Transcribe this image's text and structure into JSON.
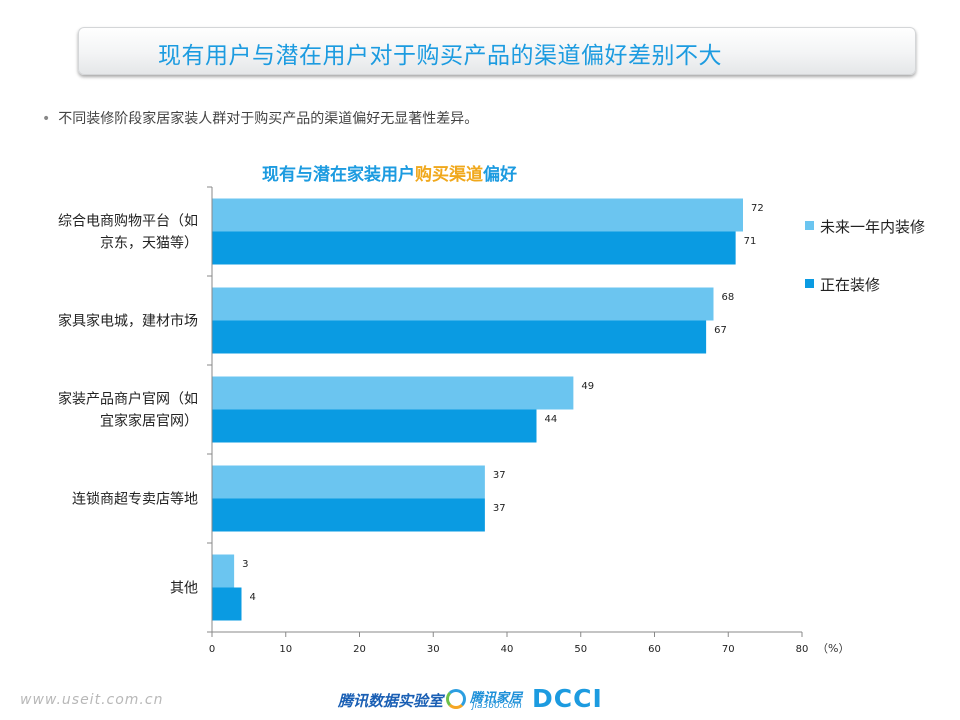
{
  "slide": {
    "title": "现有用户与潜在用户对于购买产品的渠道偏好差别不大",
    "bullet": "不同装修阶段家居家装人群对于购买产品的渠道偏好无显著性差异。"
  },
  "chart_title": {
    "part1": "现有与潜在家装用户",
    "part2": "购买渠道",
    "part3": "偏好"
  },
  "chart_data": {
    "type": "bar",
    "orientation": "horizontal",
    "categories": [
      [
        "综合电商购物平台（如",
        "京东，天猫等）"
      ],
      [
        "家具家电城，建材市场"
      ],
      [
        "家装产品商户官网（如",
        "宜家家居官网）"
      ],
      [
        "连锁商超专卖店等地"
      ],
      [
        "其他"
      ]
    ],
    "series": [
      {
        "name": "未来一年内装修",
        "color": "#6bc5f0",
        "values": [
          72,
          68,
          49,
          37,
          3
        ]
      },
      {
        "name": "正在装修",
        "color": "#0a9be2",
        "values": [
          71,
          67,
          44,
          37,
          4
        ]
      }
    ],
    "xlim": [
      0,
      80
    ],
    "xticks": [
      0,
      10,
      20,
      30,
      40,
      50,
      60,
      70,
      80
    ],
    "unit_label": "（%）",
    "legend_position": "right",
    "grid": false
  },
  "footer": {
    "url": "www.useit.com.cn",
    "lab": "腾讯数据实验室",
    "logo_text": "腾讯家居",
    "logo_sub": "jia360.com",
    "dcci": "DCCI"
  }
}
